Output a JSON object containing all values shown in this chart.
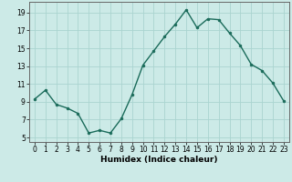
{
  "x": [
    0,
    1,
    2,
    3,
    4,
    5,
    6,
    7,
    8,
    9,
    10,
    11,
    12,
    13,
    14,
    15,
    16,
    17,
    18,
    19,
    20,
    21,
    22,
    23
  ],
  "y": [
    9.3,
    10.3,
    8.7,
    8.3,
    7.7,
    5.5,
    5.8,
    5.5,
    7.1,
    9.8,
    13.1,
    14.7,
    16.3,
    17.7,
    19.3,
    17.3,
    18.3,
    18.2,
    16.7,
    15.3,
    13.2,
    12.5,
    11.1,
    9.1
  ],
  "line_color": "#1a6b5a",
  "marker": "o",
  "markersize": 2,
  "linewidth": 1.0,
  "bg_color": "#cceae7",
  "grid_color": "#aad4d0",
  "xlabel": "Humidex (Indice chaleur)",
  "yticks": [
    5,
    7,
    9,
    11,
    13,
    15,
    17,
    19
  ],
  "xticks": [
    0,
    1,
    2,
    3,
    4,
    5,
    6,
    7,
    8,
    9,
    10,
    11,
    12,
    13,
    14,
    15,
    16,
    17,
    18,
    19,
    20,
    21,
    22,
    23
  ],
  "xlim": [
    -0.5,
    23.5
  ],
  "ylim": [
    4.5,
    20.2
  ],
  "xlabel_fontsize": 6.5,
  "tick_fontsize": 5.5
}
